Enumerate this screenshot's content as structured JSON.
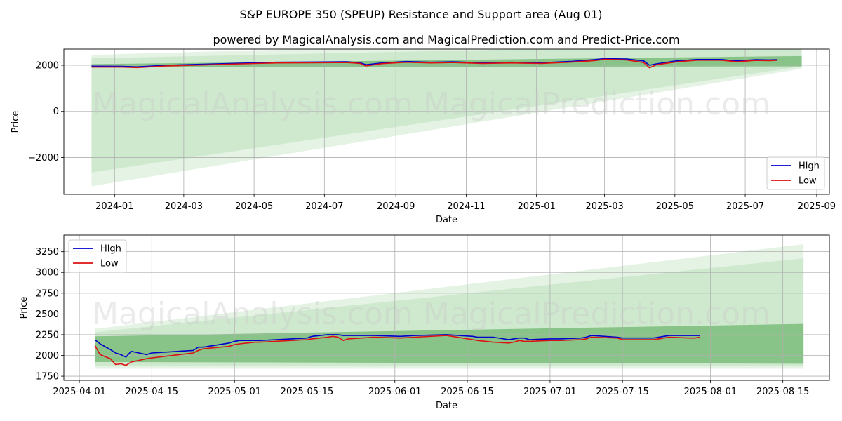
{
  "figure": {
    "title": "S&P EUROPE 350 (SPEUP) Resistance and Support area (Aug 01)",
    "subtitle": "powered by MagicalAnalysis.com and MagicalPrediction.com and Predict-Price.com",
    "watermarks": [
      "MagicalAnalysis.com",
      "MagicalPrediction.com"
    ]
  },
  "colors": {
    "high": "#0000cc",
    "low": "#dd1111",
    "band_light": "#9fd49f",
    "band_dark": "#4ea64e",
    "grid": "#b0b0b0"
  },
  "chart_data": [
    {
      "type": "line",
      "xlabel": "Date",
      "ylabel": "Price",
      "xlim": [
        "2023-11-18",
        "2025-09-12"
      ],
      "ylim": [
        -3600,
        2700
      ],
      "x_ticks": [
        "2024-01",
        "2024-03",
        "2024-05",
        "2024-07",
        "2024-09",
        "2024-11",
        "2025-01",
        "2025-03",
        "2025-05",
        "2025-07",
        "2025-09"
      ],
      "y_ticks": [
        -2000,
        0,
        2000
      ],
      "legend": {
        "position": "lower right",
        "entries": [
          "High",
          "Low"
        ]
      },
      "grid": true,
      "bands": [
        {
          "opacity": 0.28,
          "x": [
            "2023-12-12",
            "2025-08-19"
          ],
          "upper": [
            2450,
            3300
          ],
          "lower": [
            -3250,
            1850
          ]
        },
        {
          "opacity": 0.3,
          "x": [
            "2023-12-12",
            "2025-08-19"
          ],
          "upper": [
            2300,
            2950
          ],
          "lower": [
            -2650,
            1950
          ]
        },
        {
          "opacity": 0.55,
          "x": [
            "2023-12-12",
            "2025-08-19"
          ],
          "upper": [
            2050,
            2400
          ],
          "lower": [
            1920,
            1950
          ]
        }
      ],
      "series": [
        {
          "name": "High",
          "x": [
            "2023-12-12",
            "2024-01-08",
            "2024-01-20",
            "2024-02-15",
            "2024-03-15",
            "2024-04-20",
            "2024-05-20",
            "2024-06-20",
            "2024-07-20",
            "2024-08-01",
            "2024-08-06",
            "2024-08-20",
            "2024-09-10",
            "2024-10-01",
            "2024-10-20",
            "2024-11-15",
            "2024-12-10",
            "2025-01-05",
            "2025-02-01",
            "2025-02-20",
            "2025-03-01",
            "2025-03-20",
            "2025-04-04",
            "2025-04-09",
            "2025-04-15",
            "2025-05-01",
            "2025-05-20",
            "2025-06-10",
            "2025-06-24",
            "2025-07-10",
            "2025-07-22",
            "2025-07-29"
          ],
          "values": [
            1960,
            1950,
            1930,
            2000,
            2040,
            2090,
            2130,
            2140,
            2150,
            2110,
            2020,
            2100,
            2160,
            2130,
            2150,
            2110,
            2130,
            2110,
            2170,
            2240,
            2290,
            2270,
            2190,
            2000,
            2060,
            2180,
            2250,
            2250,
            2190,
            2240,
            2230,
            2240
          ]
        },
        {
          "name": "Low",
          "x": [
            "2023-12-12",
            "2024-01-08",
            "2024-01-20",
            "2024-02-15",
            "2024-03-15",
            "2024-04-20",
            "2024-05-20",
            "2024-06-20",
            "2024-07-20",
            "2024-08-01",
            "2024-08-06",
            "2024-08-20",
            "2024-09-10",
            "2024-10-01",
            "2024-10-20",
            "2024-11-15",
            "2024-12-10",
            "2025-01-05",
            "2025-02-01",
            "2025-02-20",
            "2025-03-01",
            "2025-03-20",
            "2025-04-04",
            "2025-04-09",
            "2025-04-15",
            "2025-05-01",
            "2025-05-20",
            "2025-06-10",
            "2025-06-24",
            "2025-07-10",
            "2025-07-22",
            "2025-07-29"
          ],
          "values": [
            1920,
            1920,
            1900,
            1970,
            2010,
            2060,
            2100,
            2110,
            2120,
            2080,
            1970,
            2070,
            2130,
            2100,
            2120,
            2080,
            2100,
            2080,
            2140,
            2200,
            2260,
            2230,
            2120,
            1890,
            2020,
            2140,
            2220,
            2220,
            2150,
            2210,
            2200,
            2220
          ]
        }
      ]
    },
    {
      "type": "line",
      "xlabel": "Date",
      "ylabel": "Price",
      "xlim": [
        "2025-03-29",
        "2025-08-24"
      ],
      "ylim": [
        1700,
        3450
      ],
      "x_ticks": [
        "2025-04-01",
        "2025-04-15",
        "2025-05-01",
        "2025-05-15",
        "2025-06-01",
        "2025-06-15",
        "2025-07-01",
        "2025-07-15",
        "2025-08-01",
        "2025-08-15"
      ],
      "y_ticks": [
        1750,
        2000,
        2250,
        2500,
        2750,
        3000,
        3250
      ],
      "legend": {
        "position": "upper left",
        "entries": [
          "High",
          "Low"
        ]
      },
      "grid": true,
      "bands": [
        {
          "opacity": 0.28,
          "x": [
            "2025-04-04",
            "2025-08-19"
          ],
          "upper": [
            2320,
            3340
          ],
          "lower": [
            1840,
            1840
          ]
        },
        {
          "opacity": 0.3,
          "x": [
            "2025-04-04",
            "2025-08-19"
          ],
          "upper": [
            2280,
            3170
          ],
          "lower": [
            1870,
            1870
          ]
        },
        {
          "opacity": 0.55,
          "x": [
            "2025-04-04",
            "2025-08-19"
          ],
          "upper": [
            2230,
            2380
          ],
          "lower": [
            1920,
            1900
          ]
        }
      ],
      "series": [
        {
          "name": "High",
          "x": [
            "2025-04-04",
            "2025-04-05",
            "2025-04-07",
            "2025-04-08",
            "2025-04-09",
            "2025-04-10",
            "2025-04-11",
            "2025-04-14",
            "2025-04-15",
            "2025-04-23",
            "2025-04-24",
            "2025-04-25",
            "2025-04-30",
            "2025-05-01",
            "2025-05-02",
            "2025-05-05",
            "2025-05-06",
            "2025-05-12",
            "2025-05-15",
            "2025-05-16",
            "2025-05-19",
            "2025-05-20",
            "2025-05-21",
            "2025-05-22",
            "2025-05-23",
            "2025-05-28",
            "2025-06-02",
            "2025-06-05",
            "2025-06-11",
            "2025-06-16",
            "2025-06-17",
            "2025-06-20",
            "2025-06-23",
            "2025-06-24",
            "2025-06-25",
            "2025-06-26",
            "2025-06-27",
            "2025-07-01",
            "2025-07-03",
            "2025-07-07",
            "2025-07-08",
            "2025-07-09",
            "2025-07-14",
            "2025-07-15",
            "2025-07-16",
            "2025-07-21",
            "2025-07-22",
            "2025-07-23",
            "2025-07-24",
            "2025-07-28",
            "2025-07-29",
            "2025-07-30"
          ],
          "values": [
            2190,
            2140,
            2070,
            2030,
            2010,
            1980,
            2050,
            2010,
            2030,
            2060,
            2100,
            2100,
            2150,
            2170,
            2180,
            2180,
            2180,
            2200,
            2210,
            2230,
            2250,
            2250,
            2250,
            2240,
            2240,
            2240,
            2230,
            2240,
            2250,
            2230,
            2220,
            2220,
            2190,
            2200,
            2210,
            2210,
            2190,
            2200,
            2200,
            2210,
            2220,
            2240,
            2220,
            2210,
            2210,
            2210,
            2220,
            2230,
            2240,
            2240,
            2240,
            2240
          ]
        },
        {
          "name": "Low",
          "x": [
            "2025-04-04",
            "2025-04-05",
            "2025-04-07",
            "2025-04-08",
            "2025-04-09",
            "2025-04-10",
            "2025-04-11",
            "2025-04-14",
            "2025-04-15",
            "2025-04-23",
            "2025-04-24",
            "2025-04-25",
            "2025-04-30",
            "2025-05-01",
            "2025-05-02",
            "2025-05-05",
            "2025-05-06",
            "2025-05-12",
            "2025-05-15",
            "2025-05-16",
            "2025-05-19",
            "2025-05-20",
            "2025-05-21",
            "2025-05-22",
            "2025-05-23",
            "2025-05-28",
            "2025-06-02",
            "2025-06-05",
            "2025-06-11",
            "2025-06-16",
            "2025-06-17",
            "2025-06-20",
            "2025-06-23",
            "2025-06-24",
            "2025-06-25",
            "2025-06-26",
            "2025-06-27",
            "2025-07-01",
            "2025-07-03",
            "2025-07-07",
            "2025-07-08",
            "2025-07-09",
            "2025-07-14",
            "2025-07-15",
            "2025-07-16",
            "2025-07-21",
            "2025-07-22",
            "2025-07-23",
            "2025-07-24",
            "2025-07-28",
            "2025-07-29",
            "2025-07-30"
          ],
          "values": [
            2120,
            2010,
            1960,
            1890,
            1900,
            1880,
            1920,
            1960,
            1970,
            2030,
            2060,
            2080,
            2110,
            2130,
            2140,
            2160,
            2160,
            2180,
            2190,
            2200,
            2220,
            2230,
            2220,
            2180,
            2200,
            2220,
            2210,
            2220,
            2240,
            2190,
            2180,
            2160,
            2150,
            2160,
            2180,
            2170,
            2170,
            2180,
            2180,
            2190,
            2200,
            2220,
            2210,
            2190,
            2190,
            2190,
            2200,
            2210,
            2220,
            2210,
            2210,
            2220
          ]
        }
      ]
    }
  ]
}
